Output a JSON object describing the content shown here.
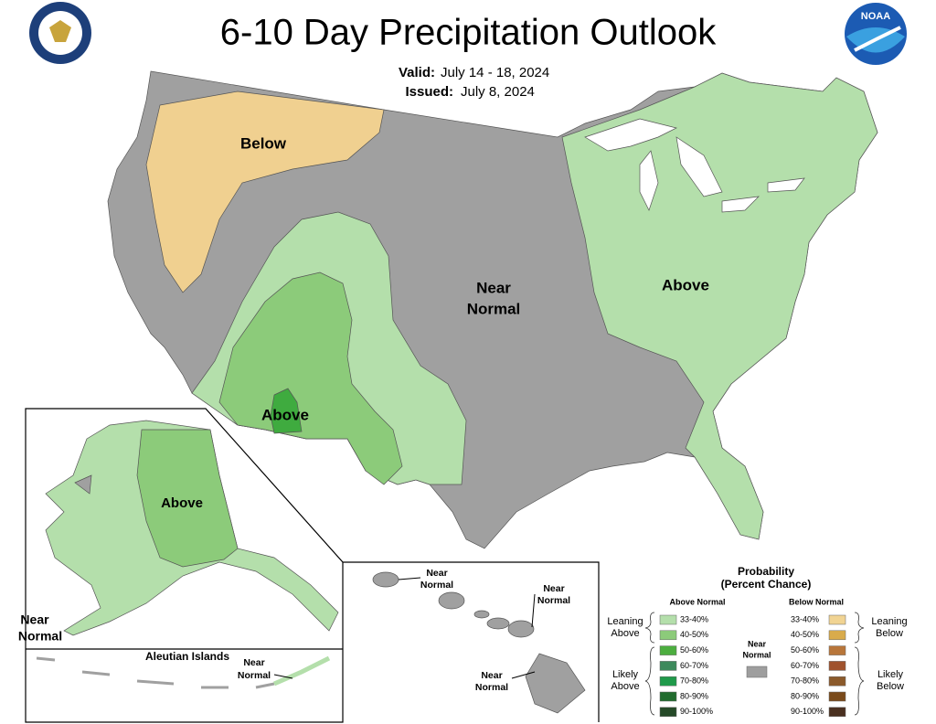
{
  "header": {
    "title": "6-10 Day Precipitation Outlook",
    "valid_label": "Valid:",
    "valid_dates": "July 14 - 18, 2024",
    "issued_label": "Issued:",
    "issued_date": "July 8, 2024",
    "noaa_logo": "NOAA"
  },
  "map_labels": [
    {
      "lines": [
        "Below"
      ]
    },
    {
      "lines": [
        "Near",
        "Normal"
      ]
    },
    {
      "lines": [
        "Above"
      ]
    },
    {
      "lines": [
        "Above"
      ]
    },
    {
      "lines": [
        "Above"
      ]
    },
    {
      "lines": [
        "Near",
        "Normal"
      ]
    },
    {
      "lines": [
        "Near",
        "Normal"
      ]
    },
    {
      "lines": [
        "Near",
        "Normal"
      ]
    },
    {
      "lines": [
        "Near",
        "Normal"
      ]
    },
    {
      "lines": [
        "Near",
        "Normal"
      ]
    }
  ],
  "insets": {
    "aleutian_title": "Aleutian Islands"
  },
  "legend": {
    "title_lines": [
      "Probability",
      "(Percent Chance)"
    ],
    "above_heading": "Above Normal",
    "below_heading": "Below Normal",
    "above_ranges": [
      "33-40%",
      "40-50%",
      "50-60%",
      "60-70%",
      "70-80%",
      "80-90%",
      "90-100%"
    ],
    "above_colors": [
      "#b4dfab",
      "#8ccb7a",
      "#4cae3f",
      "#3d8a5c",
      "#1f9a4a",
      "#216c2e",
      "#254a28"
    ],
    "below_ranges": [
      "33-40%",
      "40-50%",
      "50-60%",
      "60-70%",
      "70-80%",
      "80-90%",
      "90-100%"
    ],
    "below_colors": [
      "#f1d493",
      "#d9ab4b",
      "#b8763a",
      "#a0522d",
      "#8b5a2b",
      "#7a4a1a",
      "#4a3020"
    ],
    "leaning_above": [
      "Leaning",
      "Above"
    ],
    "likely_above": [
      "Likely",
      "Above"
    ],
    "near_normal": [
      "Near",
      "Normal"
    ],
    "near_color": "#9e9e9e",
    "leaning_below": [
      "Leaning",
      "Below"
    ],
    "likely_below": [
      "Likely",
      "Below"
    ]
  }
}
